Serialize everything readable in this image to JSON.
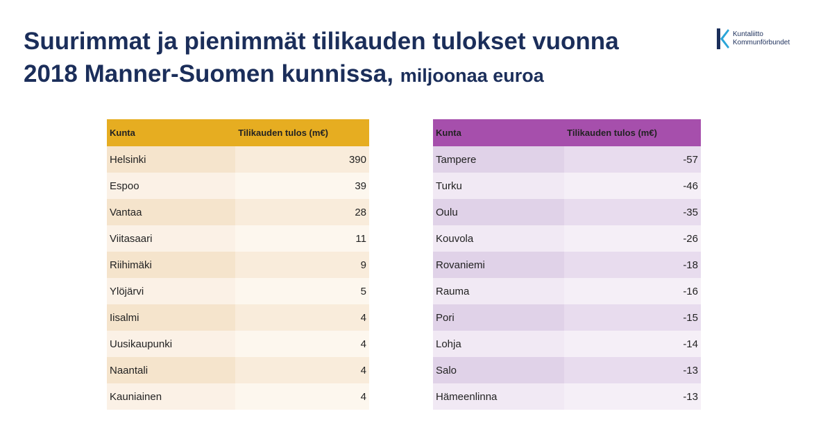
{
  "header": {
    "title_line1": "Suurimmat ja pienimmät tilikauden tulokset vuonna",
    "title_line2": "2018 Manner-Suomen kunnissa,",
    "title_unit": "miljoonaa euroa"
  },
  "logo": {
    "name_fi": "Kuntaliitto",
    "name_sv": "Kommunförbundet",
    "color": "#1b2e5a"
  },
  "colors": {
    "top_header": "#e6ad21",
    "bottom_header": "#a64fac",
    "title": "#1b2e5a"
  },
  "top_table": {
    "headers": [
      "Kunta",
      "Tilikauden tulos (m€)"
    ],
    "rows": [
      [
        "Helsinki",
        "390"
      ],
      [
        "Espoo",
        "39"
      ],
      [
        "Vantaa",
        "28"
      ],
      [
        "Viitasaari",
        "11"
      ],
      [
        "Riihimäki",
        "9"
      ],
      [
        "Ylöjärvi",
        "5"
      ],
      [
        "Iisalmi",
        "4"
      ],
      [
        "Uusikaupunki",
        "4"
      ],
      [
        "Naantali",
        "4"
      ],
      [
        "Kauniainen",
        "4"
      ]
    ]
  },
  "bottom_table": {
    "headers": [
      "Kunta",
      "Tilikauden tulos (m€)"
    ],
    "rows": [
      [
        "Tampere",
        "-57"
      ],
      [
        "Turku",
        "-46"
      ],
      [
        "Oulu",
        "-35"
      ],
      [
        "Kouvola",
        "-26"
      ],
      [
        "Rovaniemi",
        "-18"
      ],
      [
        "Rauma",
        "-16"
      ],
      [
        "Pori",
        "-15"
      ],
      [
        "Lohja",
        "-14"
      ],
      [
        "Salo",
        "-13"
      ],
      [
        "Hämeenlinna",
        "-13"
      ]
    ]
  }
}
